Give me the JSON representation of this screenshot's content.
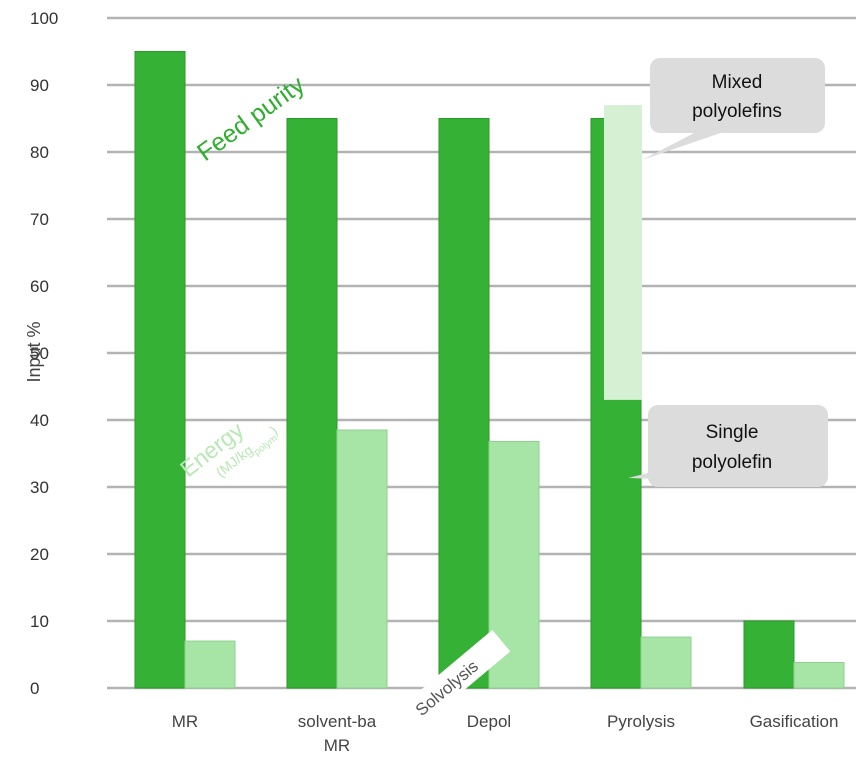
{
  "colors": {
    "feed_purity": "#35b235",
    "energy": "#a7e5a7",
    "grid": "#b3b3b3",
    "callout_fill": "#dcdcdc",
    "light_panel": "#d5f0d3"
  },
  "chart_data": {
    "type": "bar",
    "categories": [
      "MR",
      "solvent-ba MR",
      "Depol",
      "Pyrolysis",
      "Gasification"
    ],
    "category_lines": [
      [
        "MR"
      ],
      [
        "solvent-ba",
        "MR"
      ],
      [
        "Depol"
      ],
      [
        "Pyrolysis"
      ],
      [
        "Gasification"
      ]
    ],
    "series": [
      {
        "name": "Feed purity",
        "values": [
          95,
          85,
          85,
          85,
          10
        ]
      },
      {
        "name": "Energy (MJ/kg polym)",
        "values": [
          7,
          38.5,
          36.8,
          7.6,
          3.8
        ]
      }
    ],
    "ylabel": "Input %",
    "ylim": [
      0,
      100
    ],
    "yticks": [
      0,
      10,
      20,
      30,
      40,
      50,
      60,
      70,
      80,
      90,
      100
    ],
    "grid": true,
    "mixed_range": [
      43,
      87
    ]
  },
  "annotations": {
    "feed_purity": "Feed purity",
    "energy_line1": "Energy",
    "energy_line2_prefix": "(MJ/kg",
    "energy_sub": "polym",
    "energy_line2_suffix": ")",
    "solvolysis": "Solvolysis",
    "mixed_line1": "Mixed",
    "mixed_line2": "polyolefins",
    "single_line1": "Single",
    "single_line2": "polyolefin"
  }
}
